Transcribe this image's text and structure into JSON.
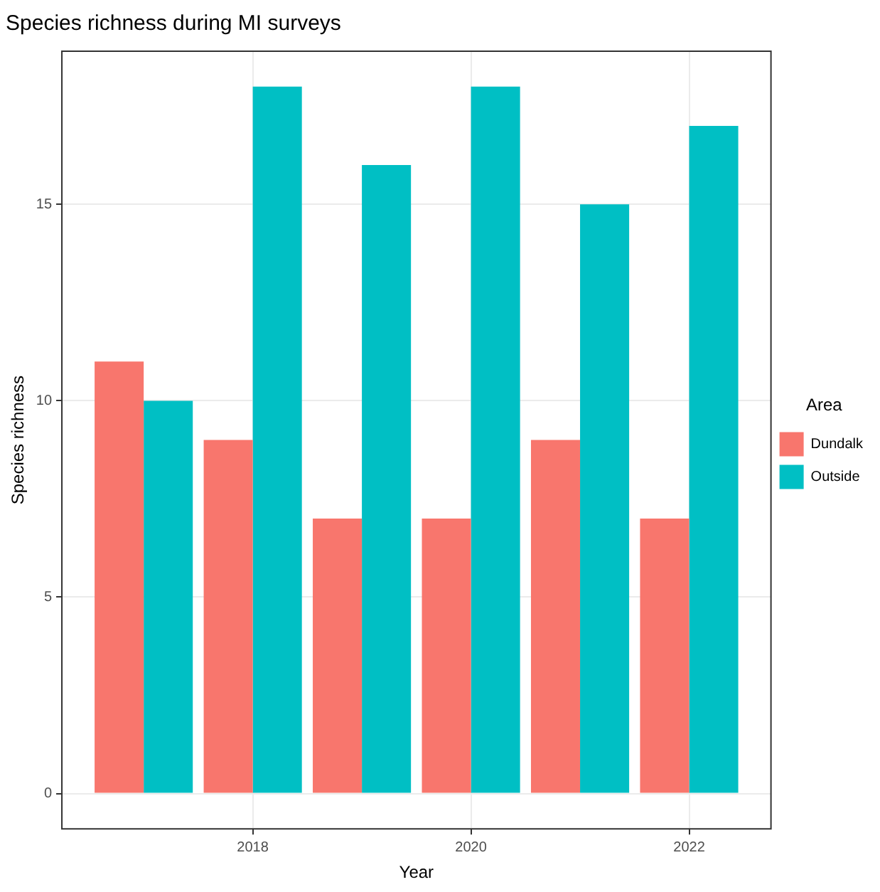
{
  "chart_data": {
    "type": "bar",
    "title": "Species richness during MI surveys",
    "xlabel": "Year",
    "ylabel": "Species richness",
    "legend_title": "Area",
    "x": [
      2017,
      2018,
      2019,
      2020,
      2021,
      2022
    ],
    "series": [
      {
        "name": "Dundalk",
        "color": "#f8766d",
        "values": [
          11,
          9,
          7,
          7,
          9,
          7
        ]
      },
      {
        "name": "Outside",
        "color": "#00bfc4",
        "values": [
          10,
          18,
          16,
          18,
          15,
          17
        ]
      }
    ],
    "xlim": [
      2016.25,
      2022.75
    ],
    "xticks": [
      2018,
      2020,
      2022
    ],
    "ylim": [
      -0.9,
      18.9
    ],
    "yticks": [
      0,
      5,
      10,
      15
    ],
    "grid": true,
    "legend": "right"
  }
}
